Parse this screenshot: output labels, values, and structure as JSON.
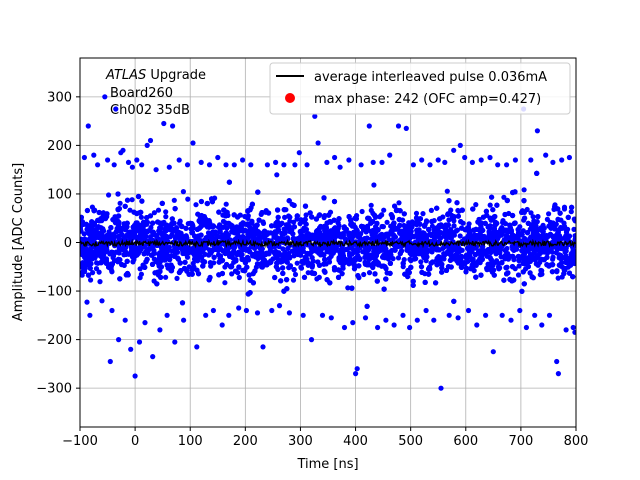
{
  "chart_data": {
    "type": "scatter",
    "xlabel": "Time [ns]",
    "ylabel": "Amplitude [ADC Counts]",
    "xlim": [
      -100,
      800
    ],
    "ylim": [
      -380,
      380
    ],
    "xticks": [
      -100,
      0,
      100,
      200,
      300,
      400,
      500,
      600,
      700,
      800
    ],
    "yticks": [
      -300,
      -200,
      -100,
      0,
      100,
      200,
      300
    ],
    "grid": true,
    "legend_placement": "top-right",
    "annotation": {
      "atlas": "ATLAS",
      "upgrade": " Upgrade",
      "board": "Board260",
      "channel": "Ch002 35dB"
    },
    "series": [
      {
        "name": "average interleaved pulse 0.036mA",
        "kind": "line",
        "color": "#000000",
        "level": -2,
        "noise_amplitude": 5
      },
      {
        "name": "max phase: 242 (OFC amp=0.427)",
        "kind": "marker",
        "color": "#ff0000",
        "x": [
          242
        ],
        "y": [
          0
        ]
      },
      {
        "name": "",
        "kind": "scatter",
        "color": "#0000ff",
        "core_band": [
          -70,
          70
        ],
        "outlier_points": [
          [
            -92,
            175
          ],
          [
            -85,
            240
          ],
          [
            -82,
            -150
          ],
          [
            -75,
            180
          ],
          [
            -68,
            160
          ],
          [
            -60,
            -120
          ],
          [
            -55,
            300
          ],
          [
            -50,
            170
          ],
          [
            -45,
            -245
          ],
          [
            -42,
            -140
          ],
          [
            -38,
            160
          ],
          [
            -35,
            275
          ],
          [
            -30,
            -200
          ],
          [
            -26,
            185
          ],
          [
            -22,
            190
          ],
          [
            -18,
            -160
          ],
          [
            -12,
            165
          ],
          [
            -8,
            -220
          ],
          [
            -5,
            155
          ],
          [
            0,
            -275
          ],
          [
            3,
            170
          ],
          [
            8,
            -205
          ],
          [
            12,
            160
          ],
          [
            18,
            -165
          ],
          [
            22,
            200
          ],
          [
            28,
            210
          ],
          [
            32,
            -235
          ],
          [
            38,
            150
          ],
          [
            45,
            -180
          ],
          [
            52,
            245
          ],
          [
            58,
            -150
          ],
          [
            62,
            155
          ],
          [
            68,
            240
          ],
          [
            72,
            -205
          ],
          [
            80,
            170
          ],
          [
            88,
            -160
          ],
          [
            95,
            160
          ],
          [
            105,
            205
          ],
          [
            112,
            -215
          ],
          [
            120,
            165
          ],
          [
            128,
            -150
          ],
          [
            135,
            160
          ],
          [
            142,
            -140
          ],
          [
            150,
            175
          ],
          [
            158,
            -170
          ],
          [
            165,
            160
          ],
          [
            170,
            -150
          ],
          [
            180,
            160
          ],
          [
            188,
            -135
          ],
          [
            195,
            170
          ],
          [
            202,
            -140
          ],
          [
            210,
            160
          ],
          [
            222,
            -145
          ],
          [
            232,
            -215
          ],
          [
            240,
            160
          ],
          [
            248,
            -140
          ],
          [
            255,
            165
          ],
          [
            262,
            -130
          ],
          [
            270,
            160
          ],
          [
            280,
            -145
          ],
          [
            290,
            160
          ],
          [
            298,
            185
          ],
          [
            305,
            -150
          ],
          [
            312,
            160
          ],
          [
            320,
            -200
          ],
          [
            326,
            260
          ],
          [
            332,
            205
          ],
          [
            340,
            -150
          ],
          [
            348,
            165
          ],
          [
            356,
            -155
          ],
          [
            362,
            175
          ],
          [
            372,
            155
          ],
          [
            380,
            -175
          ],
          [
            388,
            170
          ],
          [
            395,
            -165
          ],
          [
            400,
            -270
          ],
          [
            403,
            -260
          ],
          [
            410,
            160
          ],
          [
            418,
            -155
          ],
          [
            425,
            240
          ],
          [
            432,
            165
          ],
          [
            440,
            -175
          ],
          [
            448,
            165
          ],
          [
            455,
            -160
          ],
          [
            462,
            180
          ],
          [
            470,
            -170
          ],
          [
            478,
            240
          ],
          [
            486,
            -150
          ],
          [
            492,
            235
          ],
          [
            498,
            -175
          ],
          [
            505,
            160
          ],
          [
            512,
            -160
          ],
          [
            520,
            170
          ],
          [
            528,
            -140
          ],
          [
            535,
            160
          ],
          [
            542,
            -160
          ],
          [
            550,
            170
          ],
          [
            555,
            -300
          ],
          [
            562,
            165
          ],
          [
            570,
            -150
          ],
          [
            578,
            190
          ],
          [
            586,
            -155
          ],
          [
            590,
            200
          ],
          [
            598,
            175
          ],
          [
            605,
            -140
          ],
          [
            612,
            165
          ],
          [
            620,
            -170
          ],
          [
            628,
            170
          ],
          [
            636,
            -150
          ],
          [
            644,
            175
          ],
          [
            650,
            -225
          ],
          [
            658,
            160
          ],
          [
            666,
            -150
          ],
          [
            674,
            160
          ],
          [
            682,
            -160
          ],
          [
            690,
            170
          ],
          [
            698,
            -140
          ],
          [
            705,
            275
          ],
          [
            710,
            -175
          ],
          [
            718,
            170
          ],
          [
            725,
            -150
          ],
          [
            730,
            230
          ],
          [
            738,
            -170
          ],
          [
            745,
            180
          ],
          [
            752,
            -150
          ],
          [
            758,
            165
          ],
          [
            765,
            -245
          ],
          [
            768,
            -270
          ],
          [
            774,
            170
          ],
          [
            782,
            -180
          ],
          [
            788,
            175
          ],
          [
            795,
            -175
          ],
          [
            798,
            -185
          ]
        ]
      }
    ]
  }
}
